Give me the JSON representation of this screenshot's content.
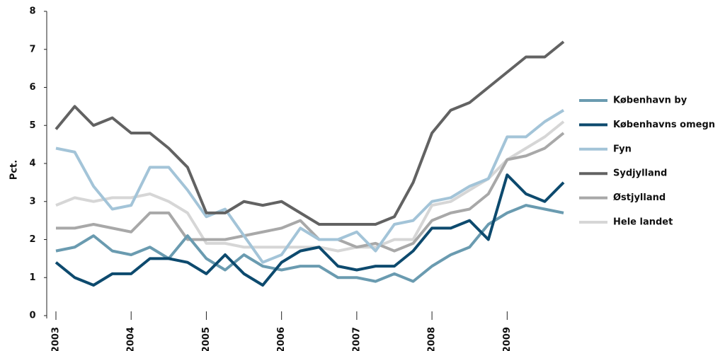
{
  "chart_data": {
    "type": "line",
    "y_label": "Pct.",
    "x": [
      2003,
      2003.25,
      2003.5,
      2003.75,
      2004,
      2004.25,
      2004.5,
      2004.75,
      2005,
      2005.25,
      2005.5,
      2005.75,
      2006,
      2006.25,
      2006.5,
      2006.75,
      2007,
      2007.25,
      2007.5,
      2007.75,
      2008,
      2008.25,
      2008.5,
      2008.75,
      2009,
      2009.25,
      2009.5,
      2009.75
    ],
    "xlim": [
      2003,
      2009.75
    ],
    "xticks": [
      2003,
      2004,
      2005,
      2006,
      2007,
      2008,
      2009
    ],
    "ylim": [
      0,
      8
    ],
    "yticks": [
      0,
      1,
      2,
      3,
      4,
      5,
      6,
      7,
      8
    ],
    "legend": "right",
    "series": [
      {
        "name": "København by",
        "color": "#6a9bb0",
        "values": [
          1.7,
          1.8,
          2.1,
          1.7,
          1.6,
          1.8,
          1.5,
          2.1,
          1.5,
          1.2,
          1.6,
          1.3,
          1.2,
          1.3,
          1.3,
          1.0,
          1.0,
          0.9,
          1.1,
          0.9,
          1.3,
          1.6,
          1.8,
          2.4,
          2.7,
          2.9,
          2.8,
          2.7
        ]
      },
      {
        "name": "Københavns omegn",
        "color": "#0d4a6e",
        "values": [
          1.4,
          1.0,
          0.8,
          1.1,
          1.1,
          1.5,
          1.5,
          1.4,
          1.1,
          1.6,
          1.1,
          0.8,
          1.4,
          1.7,
          1.8,
          1.3,
          1.2,
          1.3,
          1.3,
          1.7,
          2.3,
          2.3,
          2.5,
          2.0,
          3.7,
          3.2,
          3.0,
          3.5
        ]
      },
      {
        "name": "Fyn",
        "color": "#a3c4d8",
        "values": [
          4.4,
          4.3,
          3.4,
          2.8,
          2.9,
          3.9,
          3.9,
          3.3,
          2.6,
          2.8,
          2.1,
          1.4,
          1.6,
          2.3,
          2.0,
          2.0,
          2.2,
          1.7,
          2.4,
          2.5,
          3.0,
          3.1,
          3.4,
          3.6,
          4.7,
          4.7,
          5.1,
          5.4
        ]
      },
      {
        "name": "Sydjylland",
        "color": "#626262",
        "values": [
          4.9,
          5.5,
          5.0,
          5.2,
          4.8,
          4.8,
          4.4,
          3.9,
          2.7,
          2.7,
          3.0,
          2.9,
          3.0,
          2.7,
          2.4,
          2.4,
          2.4,
          2.4,
          2.6,
          3.5,
          4.8,
          5.4,
          5.6,
          6.0,
          6.4,
          6.8,
          6.8,
          7.2
        ]
      },
      {
        "name": "Østjylland",
        "color": "#a8a8a8",
        "values": [
          2.3,
          2.3,
          2.4,
          2.3,
          2.2,
          2.7,
          2.7,
          2.0,
          2.0,
          2.0,
          2.1,
          2.2,
          2.3,
          2.5,
          2.0,
          2.0,
          1.8,
          1.9,
          1.7,
          1.9,
          2.5,
          2.7,
          2.8,
          3.2,
          4.1,
          4.2,
          4.4,
          4.8
        ]
      },
      {
        "name": "Hele landet",
        "color": "#d6d6d6",
        "values": [
          2.9,
          3.1,
          3.0,
          3.1,
          3.1,
          3.2,
          3.0,
          2.7,
          1.9,
          1.9,
          1.8,
          1.8,
          1.8,
          1.8,
          1.8,
          1.7,
          1.8,
          1.8,
          2.0,
          2.0,
          2.9,
          3.0,
          3.3,
          3.6,
          4.1,
          4.4,
          4.7,
          5.1
        ]
      }
    ]
  }
}
